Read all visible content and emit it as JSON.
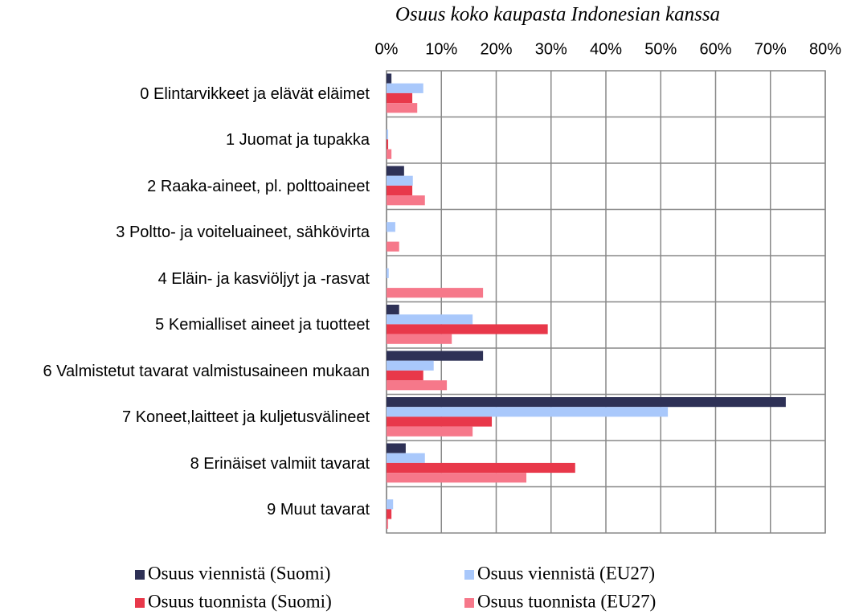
{
  "chart_data": {
    "type": "barh",
    "title": "Osuus koko kaupasta Indonesian kanssa",
    "categories": [
      "0  Elintarvikkeet ja elävät eläimet",
      "1  Juomat ja tupakka",
      "2  Raaka-aineet, pl. polttoaineet",
      "3  Poltto- ja voiteluaineet, sähkövirta",
      "4  Eläin- ja kasviöljyt ja -rasvat",
      "5  Kemialliset aineet ja tuotteet",
      "6  Valmistetut tavarat valmistusaineen mukaan",
      "7  Koneet,laitteet ja kuljetusvälineet",
      "8  Erinäiset valmiit tavarat",
      "9  Muut tavarat"
    ],
    "series": [
      {
        "name": "Osuus viennistä (Suomi)",
        "color": "#2e3156",
        "values": [
          0.9,
          0,
          3.2,
          0,
          0,
          2.3,
          17.6,
          72.8,
          3.5,
          0
        ]
      },
      {
        "name": "Osuus viennistä (EU27)",
        "color": "#a9c8fb",
        "values": [
          6.7,
          0.3,
          4.8,
          1.6,
          0.4,
          15.7,
          8.6,
          51.3,
          7.0,
          1.2
        ]
      },
      {
        "name": "Osuus tuonnista (Suomi)",
        "color": "#e8384a",
        "values": [
          4.7,
          0.3,
          4.7,
          0,
          0,
          29.4,
          6.7,
          19.2,
          34.4,
          0.9
        ]
      },
      {
        "name": "Osuus tuonnista (EU27)",
        "color": "#f6788a",
        "values": [
          5.6,
          0.9,
          7.0,
          2.3,
          17.6,
          11.9,
          11.0,
          15.7,
          25.5,
          0.3
        ]
      }
    ],
    "xlim": [
      0,
      80
    ],
    "xticks": [
      {
        "value": 0,
        "label": "0%"
      },
      {
        "value": 10,
        "label": "10%"
      },
      {
        "value": 20,
        "label": "20%"
      },
      {
        "value": 30,
        "label": "30%"
      },
      {
        "value": 40,
        "label": "40%"
      },
      {
        "value": 50,
        "label": "50%"
      },
      {
        "value": 60,
        "label": "60%"
      },
      {
        "value": 70,
        "label": "70%"
      },
      {
        "value": 80,
        "label": "80%"
      }
    ],
    "grid": true,
    "legend": "bottom"
  }
}
